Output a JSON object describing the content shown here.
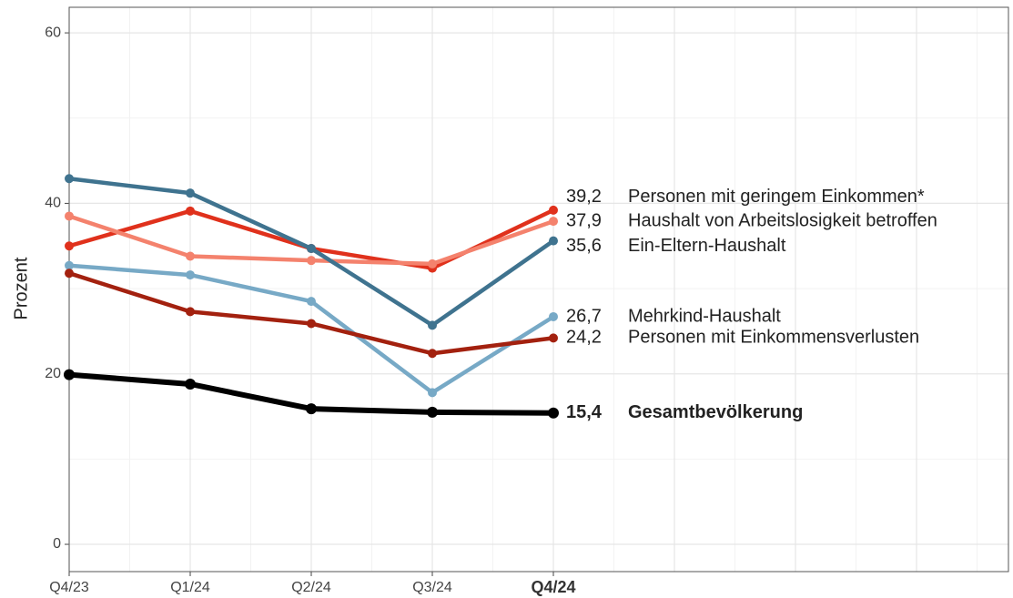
{
  "chart_data": {
    "type": "line",
    "y_label": "Prozent",
    "categories": [
      "Q4/23",
      "Q1/24",
      "Q2/24",
      "Q3/24",
      "Q4/24"
    ],
    "ylim": [
      -3.2,
      63
    ],
    "yticks": [
      0,
      20,
      40,
      60
    ],
    "grid": true,
    "series": [
      {
        "name": "Personen mit geringem Einkommen*",
        "color": "#e0311c",
        "values": [
          35.0,
          39.1,
          34.7,
          32.4,
          39.2
        ],
        "value_labels": [
          null,
          null,
          null,
          null,
          "39,2"
        ]
      },
      {
        "name": "Haushalt von Arbeitslosigkeit betroffen",
        "color": "#f4826d",
        "values": [
          38.5,
          33.8,
          33.3,
          32.9,
          37.9
        ],
        "value_labels": [
          null,
          null,
          null,
          null,
          "37,9"
        ]
      },
      {
        "name": "Ein-Eltern-Haushalt",
        "color": "#3f738f",
        "values": [
          42.9,
          41.2,
          34.7,
          25.7,
          35.6
        ],
        "value_labels": [
          null,
          null,
          null,
          null,
          "35,6"
        ]
      },
      {
        "name": "Mehrkind-Haushalt",
        "color": "#77a9c6",
        "values": [
          32.7,
          31.6,
          28.5,
          17.8,
          26.7
        ],
        "value_labels": [
          null,
          null,
          null,
          null,
          "26,7"
        ]
      },
      {
        "name": "Personen mit Einkommensverlusten",
        "color": "#a3210f",
        "values": [
          31.8,
          27.3,
          25.9,
          22.4,
          24.2
        ],
        "value_labels": [
          null,
          null,
          null,
          null,
          "24,2"
        ]
      },
      {
        "name": "Gesamtbevölkerung",
        "color": "#000000",
        "values": [
          19.9,
          18.8,
          15.9,
          15.5,
          15.4
        ],
        "value_labels": [
          null,
          null,
          null,
          null,
          "15,4"
        ]
      }
    ]
  }
}
